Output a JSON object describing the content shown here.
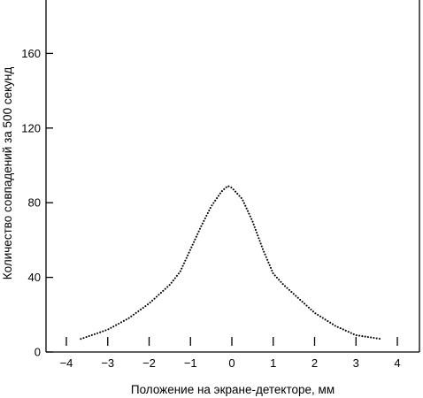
{
  "chart_data": {
    "type": "scatter",
    "title": "",
    "xlabel": "Положение на экране-детекторе, мм",
    "ylabel": "Количество совпадений за 500 секунд",
    "xlim": [
      -4.3,
      4.3
    ],
    "ylim": [
      0,
      190
    ],
    "x_ticks": [
      -4,
      -3,
      -2,
      -1,
      0,
      1,
      2,
      3,
      4
    ],
    "x_tick_labels": [
      "−4",
      "−3",
      "−2",
      "−1",
      "0",
      "1",
      "2",
      "3",
      "4"
    ],
    "y_ticks": [
      0,
      40,
      80,
      120,
      160
    ],
    "y_tick_labels": [
      "0",
      "40",
      "80",
      "120",
      "160"
    ],
    "grid": false,
    "marker_color": "#000000",
    "curve_knots": {
      "x": [
        -3.65,
        -3.0,
        -2.5,
        -2.0,
        -1.5,
        -1.25,
        -1.0,
        -0.75,
        -0.5,
        -0.25,
        -0.1,
        0.0,
        0.25,
        0.5,
        0.75,
        1.0,
        1.25,
        1.5,
        2.0,
        2.5,
        3.0,
        3.6
      ],
      "y": [
        7,
        12,
        18,
        26,
        36,
        43,
        55,
        67,
        78,
        86,
        89,
        88,
        82,
        70,
        55,
        42,
        36,
        31,
        21,
        14,
        9,
        7
      ]
    }
  }
}
